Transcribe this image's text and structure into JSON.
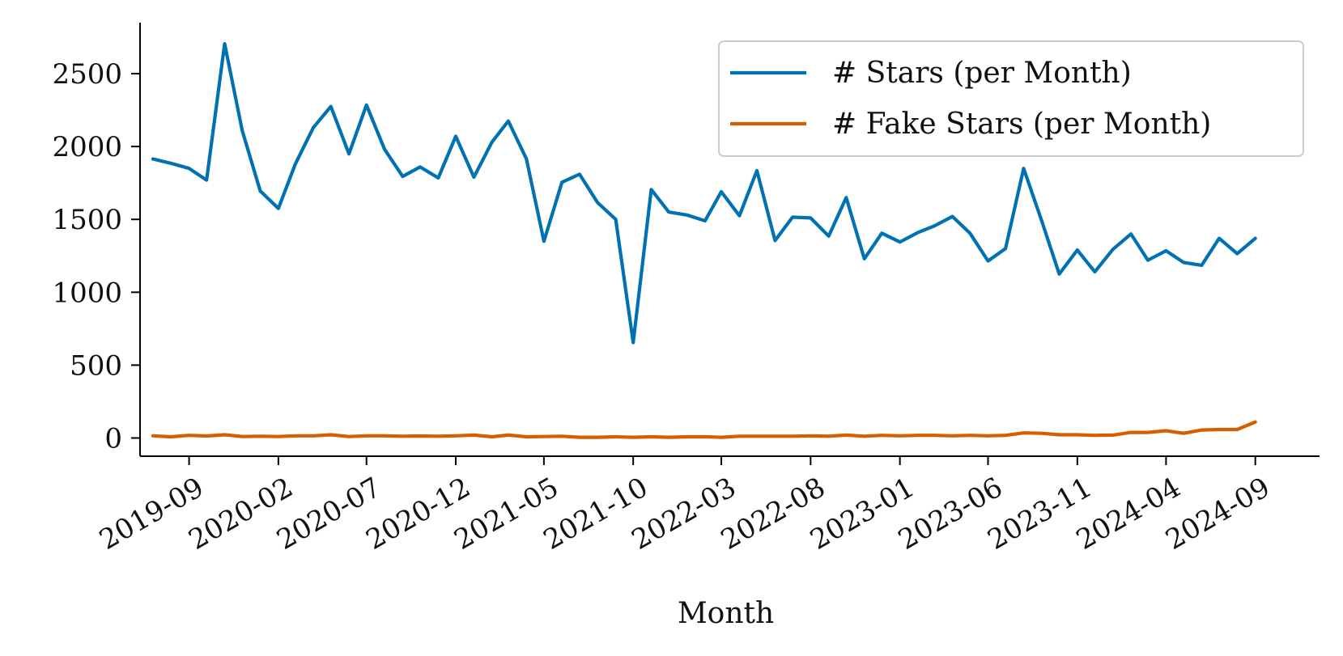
{
  "chart_data": {
    "type": "line",
    "xlabel": "Month",
    "ylabel": "",
    "x_tick_labels": [
      "2019-09",
      "2020-02",
      "2020-07",
      "2020-12",
      "2021-05",
      "2021-10",
      "2022-03",
      "2022-08",
      "2023-01",
      "2023-06",
      "2023-11",
      "2024-04",
      "2024-09"
    ],
    "y_ticks": [
      0,
      500,
      1000,
      1500,
      2000,
      2500
    ],
    "ylim": [
      -125,
      2850
    ],
    "xlim": [
      "2019-06-09",
      "2024-12-20"
    ],
    "grid": false,
    "legend_position": "top-right",
    "x": [
      "2019-07",
      "2019-08",
      "2019-09",
      "2019-10",
      "2019-11",
      "2019-12",
      "2020-01",
      "2020-02",
      "2020-03",
      "2020-04",
      "2020-05",
      "2020-06",
      "2020-07",
      "2020-08",
      "2020-09",
      "2020-10",
      "2020-11",
      "2020-12",
      "2021-01",
      "2021-02",
      "2021-03",
      "2021-04",
      "2021-05",
      "2021-06",
      "2021-07",
      "2021-08",
      "2021-09",
      "2021-10",
      "2021-11",
      "2021-12",
      "2022-01",
      "2022-02",
      "2022-03",
      "2022-04",
      "2022-05",
      "2022-06",
      "2022-07",
      "2022-08",
      "2022-09",
      "2022-10",
      "2022-11",
      "2022-12",
      "2023-01",
      "2023-02",
      "2023-03",
      "2023-04",
      "2023-05",
      "2023-06",
      "2023-07",
      "2023-08",
      "2023-09",
      "2023-10",
      "2023-11",
      "2023-12",
      "2024-01",
      "2024-02",
      "2024-03",
      "2024-04",
      "2024-05",
      "2024-06",
      "2024-07",
      "2024-08",
      "2024-09"
    ],
    "series": [
      {
        "name": "# Stars (per Month)",
        "color": "#0072B2",
        "values": [
          1915,
          1885,
          1850,
          1770,
          2705,
          2110,
          1695,
          1575,
          1880,
          2130,
          2275,
          1950,
          2285,
          1980,
          1795,
          1860,
          1785,
          2070,
          1790,
          2030,
          2175,
          1915,
          1350,
          1755,
          1810,
          1615,
          1500,
          655,
          1705,
          1550,
          1530,
          1490,
          1690,
          1525,
          1835,
          1355,
          1515,
          1510,
          1385,
          1650,
          1230,
          1405,
          1345,
          1410,
          1455,
          1520,
          1405,
          1215,
          1300,
          1850,
          1490,
          1125,
          1290,
          1140,
          1295,
          1400,
          1220,
          1285,
          1205,
          1185,
          1370,
          1265,
          1370
        ]
      },
      {
        "name": "# Fake Stars (per Month)",
        "color": "#D55E00",
        "values": [
          15,
          8,
          18,
          14,
          22,
          10,
          12,
          10,
          15,
          15,
          22,
          10,
          15,
          15,
          12,
          14,
          12,
          15,
          20,
          8,
          20,
          8,
          10,
          12,
          5,
          5,
          8,
          5,
          8,
          5,
          8,
          8,
          5,
          12,
          12,
          12,
          12,
          15,
          12,
          20,
          12,
          18,
          15,
          18,
          18,
          15,
          18,
          15,
          18,
          35,
          32,
          22,
          22,
          18,
          20,
          38,
          38,
          50,
          32,
          55,
          58,
          58,
          110
        ]
      }
    ]
  }
}
